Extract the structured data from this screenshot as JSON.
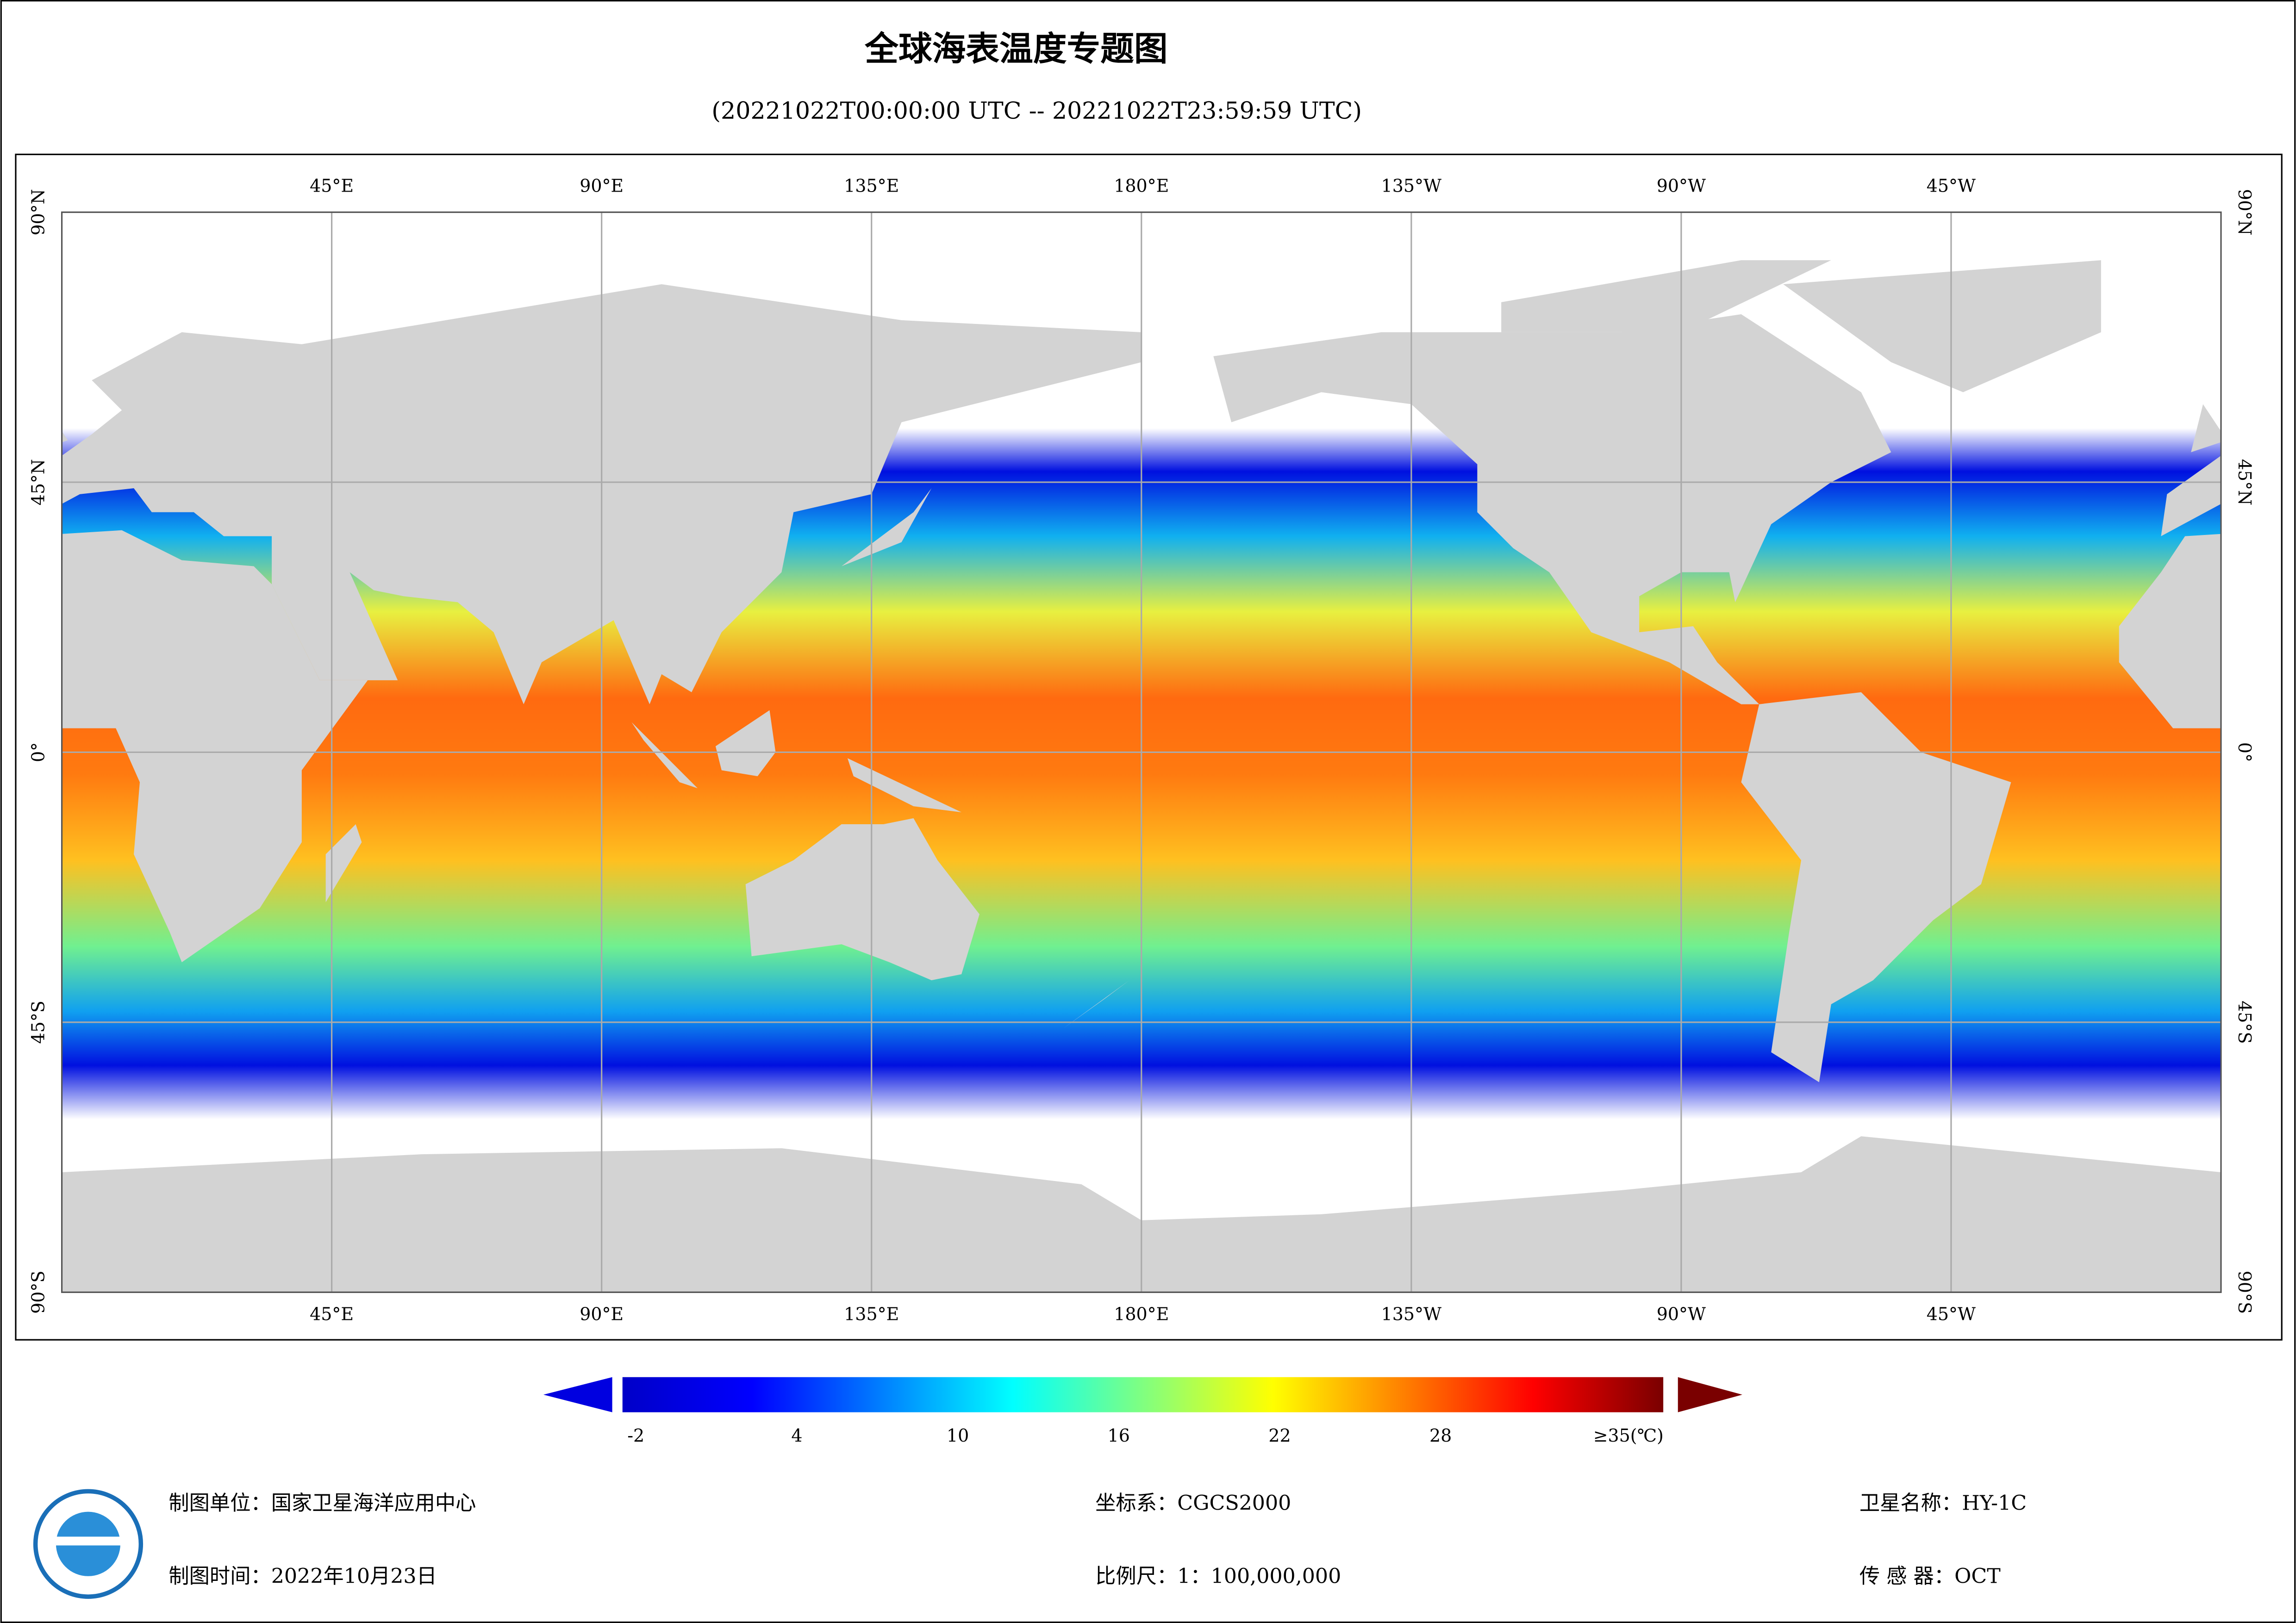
{
  "title": "全球海表温度专题图",
  "subtitle": "(20221022T00:00:00 UTC -- 20221022T23:59:59 UTC)",
  "map": {
    "lonlim": [
      0,
      360
    ],
    "latlim": [
      -90,
      90
    ],
    "lon_ticks": [
      {
        "value": 45,
        "label": "45°E"
      },
      {
        "value": 90,
        "label": "90°E"
      },
      {
        "value": 135,
        "label": "135°E"
      },
      {
        "value": 180,
        "label": "180°E"
      },
      {
        "value": 225,
        "label": "135°W"
      },
      {
        "value": 270,
        "label": "90°W"
      },
      {
        "value": 315,
        "label": "45°W"
      }
    ],
    "lat_ticks": [
      {
        "value": 90,
        "label": "90°N"
      },
      {
        "value": 45,
        "label": "45°N"
      },
      {
        "value": 0,
        "label": "0°"
      },
      {
        "value": -45,
        "label": "45°S"
      },
      {
        "value": -90,
        "label": "90°S"
      }
    ],
    "grid": true
  },
  "colorbar": {
    "range": [
      -2.5,
      36.3
    ],
    "colors": [
      "#0000c8",
      "#0000ff",
      "#0080ff",
      "#00ffff",
      "#80ff80",
      "#ffff00",
      "#ff8000",
      "#ff0000",
      "#7a0000"
    ],
    "ticks": [
      -2,
      4,
      10,
      16,
      22,
      28,
      {
        "value": 35,
        "label": "≥35(℃)"
      }
    ]
  },
  "footer": {
    "unit": "制图单位：国家卫星海洋应用中心",
    "time": "制图时间：2022年10月23日",
    "crs": "坐标系：CGCS2000",
    "scale": "比例尺：1：100,000,000",
    "satellite": "卫星名称：HY-1C",
    "sensor": "传 感 器：OCT"
  }
}
